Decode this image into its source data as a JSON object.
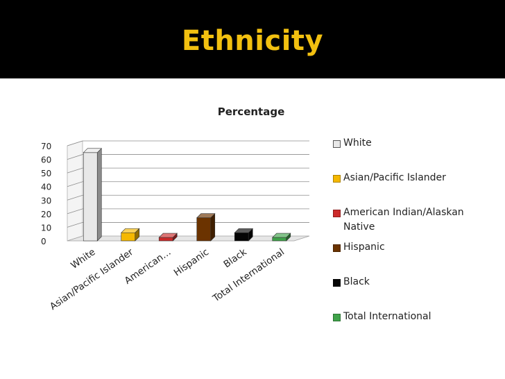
{
  "slide": {
    "title": "Ethnicity"
  },
  "chart_data": {
    "type": "bar",
    "title": "Percentage",
    "categories": [
      "White",
      "Asian/Pacific Islander",
      "American Indian/Alaskan Native",
      "Hispanic",
      "Black",
      "Total International"
    ],
    "tick_labels": [
      "White",
      "Asian/Pacific Islander",
      "American…",
      "Hispanic",
      "Black",
      "Total International"
    ],
    "values": [
      65,
      6,
      2.5,
      17,
      6,
      2.5
    ],
    "colors": [
      "#e8e8e8",
      "#f5b800",
      "#cc2a2a",
      "#6b3300",
      "#050505",
      "#3fa34a"
    ],
    "legend": [
      "White",
      "Asian/Pacific Islander",
      "American Indian/Alaskan Native",
      "Hispanic",
      "Black",
      "Total International"
    ],
    "ylim": [
      0,
      70
    ],
    "yticks": [
      "0",
      "10",
      "20",
      "30",
      "40",
      "50",
      "60",
      "70"
    ],
    "grid": true,
    "legend_position": "right"
  }
}
